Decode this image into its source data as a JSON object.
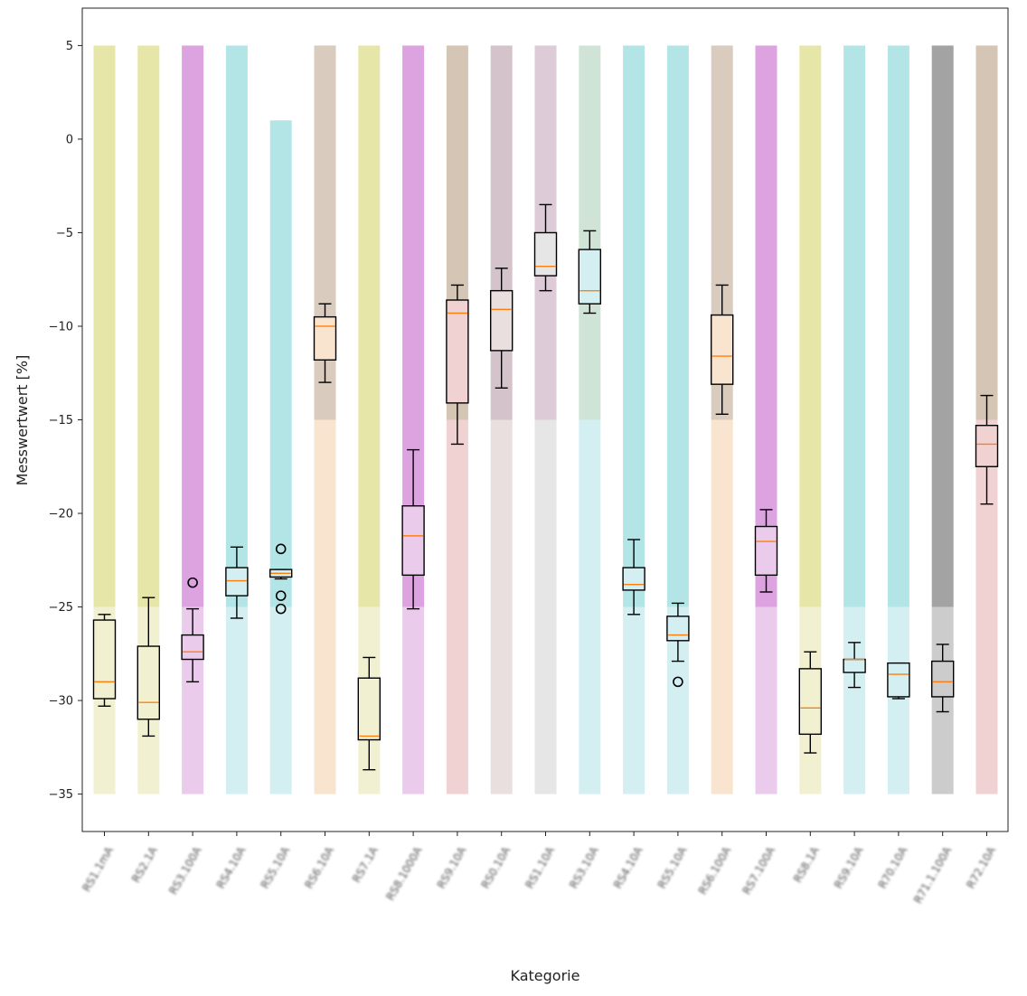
{
  "chart_data": {
    "type": "box",
    "xlabel": "Kategorie",
    "ylabel": "Messwertwert [%]",
    "ylim": [
      -37,
      7
    ],
    "yticks": [
      5,
      0,
      -5,
      -10,
      -15,
      -20,
      -25,
      -30,
      -35
    ],
    "categories": [
      "RS1.1mA",
      "RS2.1A",
      "RS3.100A",
      "RS4.10A",
      "RS5.10A",
      "RS6.10A",
      "RS7.1A",
      "RS8.1000A",
      "RS9.10A",
      "RS0.10A",
      "RS1.10A",
      "RS3.10A",
      "RS4.10A",
      "RS5.10A",
      "RS6.100A",
      "RS7.100A",
      "RS8.1A",
      "RS9.10A",
      "R70.10A",
      "R71.1.100A",
      "R72.10A"
    ],
    "bands": [
      {
        "upper_color": "#e6e6a8",
        "lower_color": "#f1f1d2",
        "split": -25,
        "top": 5,
        "bottom": -35
      },
      {
        "upper_color": "#e6e6a8",
        "lower_color": "#f1f1d2",
        "split": -25,
        "top": 5,
        "bottom": -35
      },
      {
        "upper_color": "#dda3e0",
        "lower_color": "#ebcbeb",
        "split": -25,
        "top": 5,
        "bottom": -35
      },
      {
        "upper_color": "#b3e5e6",
        "lower_color": "#d4eff2",
        "split": -25,
        "top": 5,
        "bottom": -35
      },
      {
        "upper_color": "#b3e5e6",
        "lower_color": "#d4eff2",
        "split": -25,
        "top": 1,
        "bottom": -35
      },
      {
        "upper_color": "#d9cbbe",
        "lower_color": "#f9e4cf",
        "split": -15,
        "top": 5,
        "bottom": -35
      },
      {
        "upper_color": "#e6e6a8",
        "lower_color": "#f1f1d2",
        "split": -25,
        "top": 5,
        "bottom": -35
      },
      {
        "upper_color": "#dda3e0",
        "lower_color": "#ebcbeb",
        "split": -25,
        "top": 5,
        "bottom": -35
      },
      {
        "upper_color": "#d4c5b4",
        "lower_color": "#f1d2d2",
        "split": -15,
        "top": 5,
        "bottom": -35
      },
      {
        "upper_color": "#d5c3cb",
        "lower_color": "#e8dfde",
        "split": -15,
        "top": 5,
        "bottom": -35
      },
      {
        "upper_color": "#ddcbd8",
        "lower_color": "#e6e6e6",
        "split": -15,
        "top": 5,
        "bottom": -35
      },
      {
        "upper_color": "#cfe3d6",
        "lower_color": "#d4eff2",
        "split": -15,
        "top": 5,
        "bottom": -35
      },
      {
        "upper_color": "#b3e5e6",
        "lower_color": "#d4eff2",
        "split": -25,
        "top": 5,
        "bottom": -35
      },
      {
        "upper_color": "#b3e5e6",
        "lower_color": "#d4eff2",
        "split": -25,
        "top": 5,
        "bottom": -35
      },
      {
        "upper_color": "#d9cbbe",
        "lower_color": "#f9e4cf",
        "split": -15,
        "top": 5,
        "bottom": -35
      },
      {
        "upper_color": "#dda3e0",
        "lower_color": "#ebcbeb",
        "split": -25,
        "top": 5,
        "bottom": -35
      },
      {
        "upper_color": "#e6e6a8",
        "lower_color": "#f1f1d2",
        "split": -25,
        "top": 5,
        "bottom": -35
      },
      {
        "upper_color": "#b3e5e6",
        "lower_color": "#d4eff2",
        "split": -25,
        "top": 5,
        "bottom": -35
      },
      {
        "upper_color": "#b3e5e6",
        "lower_color": "#d4eff2",
        "split": -25,
        "top": 5,
        "bottom": -35
      },
      {
        "upper_color": "#a3a3a3",
        "lower_color": "#cccccc",
        "split": -25,
        "top": 5,
        "bottom": -35
      },
      {
        "upper_color": "#d4c5b4",
        "lower_color": "#f1d2d2",
        "split": -15,
        "top": 5,
        "bottom": -35
      }
    ],
    "boxes": [
      {
        "min": -30.3,
        "q1": -29.9,
        "median": -29.0,
        "q3": -25.7,
        "max": -25.4,
        "outliers": []
      },
      {
        "min": -31.9,
        "q1": -31.0,
        "median": -30.1,
        "q3": -27.1,
        "max": -24.5,
        "outliers": []
      },
      {
        "min": -29.0,
        "q1": -27.8,
        "median": -27.4,
        "q3": -26.5,
        "max": -25.1,
        "outliers": [
          -23.7
        ]
      },
      {
        "min": -25.6,
        "q1": -24.4,
        "median": -23.6,
        "q3": -22.9,
        "max": -21.8,
        "outliers": []
      },
      {
        "min": -23.5,
        "q1": -23.4,
        "median": -23.2,
        "q3": -23.0,
        "max": -23.0,
        "outliers": [
          -21.9,
          -24.4,
          -25.1
        ]
      },
      {
        "min": -13.0,
        "q1": -11.8,
        "median": -10.0,
        "q3": -9.5,
        "max": -8.8,
        "outliers": []
      },
      {
        "min": -33.7,
        "q1": -32.1,
        "median": -31.9,
        "q3": -28.8,
        "max": -27.7,
        "outliers": []
      },
      {
        "min": -25.1,
        "q1": -23.3,
        "median": -21.2,
        "q3": -19.6,
        "max": -16.6,
        "outliers": []
      },
      {
        "min": -16.3,
        "q1": -14.1,
        "median": -9.3,
        "q3": -8.6,
        "max": -7.8,
        "outliers": []
      },
      {
        "min": -13.3,
        "q1": -11.3,
        "median": -9.1,
        "q3": -8.1,
        "max": -6.9,
        "outliers": []
      },
      {
        "min": -8.1,
        "q1": -7.3,
        "median": -6.8,
        "q3": -5.0,
        "max": -3.5,
        "outliers": []
      },
      {
        "min": -9.3,
        "q1": -8.8,
        "median": -8.1,
        "q3": -5.9,
        "max": -4.9,
        "outliers": []
      },
      {
        "min": -25.4,
        "q1": -24.1,
        "median": -23.8,
        "q3": -22.9,
        "max": -21.4,
        "outliers": []
      },
      {
        "min": -27.9,
        "q1": -26.8,
        "median": -26.5,
        "q3": -25.5,
        "max": -24.8,
        "outliers": [
          -29.0
        ]
      },
      {
        "min": -14.7,
        "q1": -13.1,
        "median": -11.6,
        "q3": -9.4,
        "max": -7.8,
        "outliers": []
      },
      {
        "min": -24.2,
        "q1": -23.3,
        "median": -21.5,
        "q3": -20.7,
        "max": -19.8,
        "outliers": []
      },
      {
        "min": -32.8,
        "q1": -31.8,
        "median": -30.4,
        "q3": -28.3,
        "max": -27.4,
        "outliers": []
      },
      {
        "min": -29.3,
        "q1": -28.5,
        "median": -27.8,
        "q3": -27.8,
        "max": -26.9,
        "outliers": []
      },
      {
        "min": -29.9,
        "q1": -29.8,
        "median": -28.6,
        "q3": -28.0,
        "max": -28.0,
        "outliers": []
      },
      {
        "min": -30.6,
        "q1": -29.8,
        "median": -29.0,
        "q3": -27.9,
        "max": -27.0,
        "outliers": []
      },
      {
        "min": -19.5,
        "q1": -17.5,
        "median": -16.3,
        "q3": -15.3,
        "max": -13.7,
        "outliers": []
      }
    ],
    "box_fill_from_band": "lower_color",
    "median_color": "#ff7f0e",
    "grid": false,
    "legend": "none"
  }
}
